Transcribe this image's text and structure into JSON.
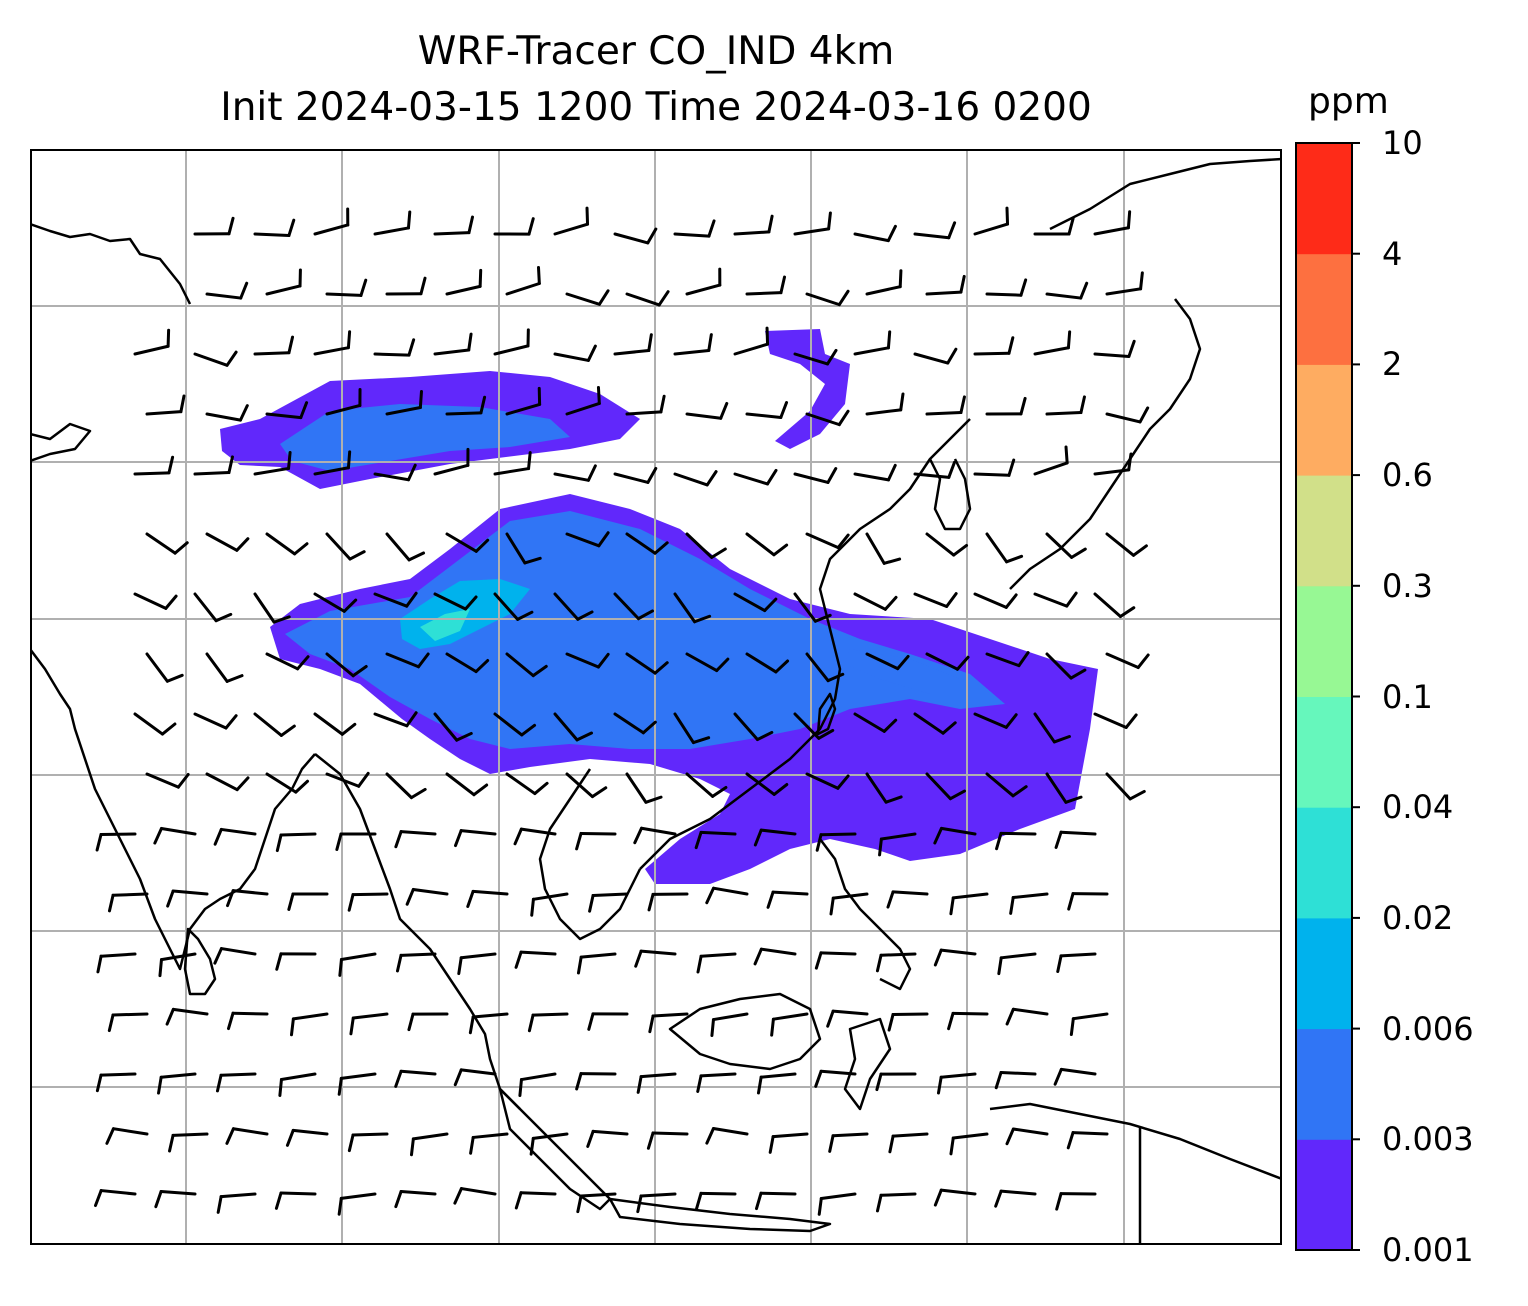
{
  "title": {
    "line1": "WRF-Tracer CO_IND 4km",
    "line2": "Init 2024-03-15 1200 Time 2024-03-16 0200"
  },
  "colorbar": {
    "label": "ppm",
    "ticks": [
      "10",
      "4",
      "2",
      "0.6",
      "0.3",
      "0.1",
      "0.04",
      "0.02",
      "0.006",
      "0.003",
      "0.001"
    ],
    "levels": [
      {
        "from": "0.001",
        "to": "0.003",
        "color": "#6128fb"
      },
      {
        "from": "0.003",
        "to": "0.006",
        "color": "#3075f5"
      },
      {
        "from": "0.006",
        "to": "0.02",
        "color": "#00b2ed"
      },
      {
        "from": "0.02",
        "to": "0.04",
        "color": "#2ee0d6"
      },
      {
        "from": "0.04",
        "to": "0.1",
        "color": "#66f7bc"
      },
      {
        "from": "0.1",
        "to": "0.3",
        "color": "#97f894"
      },
      {
        "from": "0.3",
        "to": "0.6",
        "color": "#d1e089"
      },
      {
        "from": "0.6",
        "to": "2",
        "color": "#feac61"
      },
      {
        "from": "2",
        "to": "4",
        "color": "#fd7040"
      },
      {
        "from": "4",
        "to": "10",
        "color": "#fe2b18"
      }
    ]
  },
  "map": {
    "gridlines": true,
    "coastline_color": "#000000",
    "wind_barbs": true
  }
}
